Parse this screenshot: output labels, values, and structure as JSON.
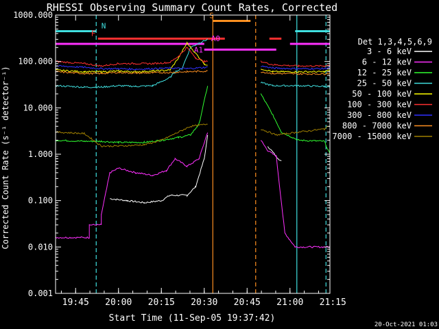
{
  "chart_data": {
    "type": "line",
    "title": "RHESSI Observing Summary Count Rates, Corrected",
    "xlabel": "Start Time (11-Sep-05 19:37:42)",
    "ylabel": "Corrected Count Rate (s⁻¹ detector⁻¹)",
    "footer": "20-Oct-2021 01:03",
    "yscale": "log",
    "ylim": [
      0.001,
      1000
    ],
    "xlim": [
      19.633,
      21.233
    ],
    "y_ticks": [
      {
        "v": 1000,
        "label": "1000.000"
      },
      {
        "v": 100,
        "label": "100.000"
      },
      {
        "v": 10,
        "label": "10.000"
      },
      {
        "v": 1,
        "label": "1.000"
      },
      {
        "v": 0.1,
        "label": "0.100"
      },
      {
        "v": 0.01,
        "label": "0.010"
      },
      {
        "v": 0.001,
        "label": "0.001"
      }
    ],
    "x_ticks": [
      {
        "v": 19.75,
        "label": "19:45"
      },
      {
        "v": 20.0,
        "label": "20:00"
      },
      {
        "v": 20.25,
        "label": "20:15"
      },
      {
        "v": 20.5,
        "label": "20:30"
      },
      {
        "v": 20.75,
        "label": "20:45"
      },
      {
        "v": 21.0,
        "label": "21:00"
      },
      {
        "v": 21.25,
        "label": "21:15"
      }
    ],
    "legend_title": "Det 1,3,4,5,6,9",
    "series": [
      {
        "name": "3 - 6 keV",
        "color": "#ffffff",
        "points": [
          [
            19.95,
            0.11
          ],
          [
            20.05,
            0.1
          ],
          [
            20.15,
            0.09
          ],
          [
            20.25,
            0.1
          ],
          [
            20.3,
            0.13
          ],
          [
            20.4,
            0.13
          ],
          [
            20.45,
            0.2
          ],
          [
            20.5,
            0.8
          ],
          [
            20.52,
            2.5
          ],
          null,
          [
            20.87,
            1.5
          ],
          [
            20.92,
            0.9
          ],
          [
            20.95,
            0.7
          ]
        ]
      },
      {
        "name": "6 - 12 keV",
        "color": "#ff30ff",
        "points": [
          [
            19.633,
            0.016
          ],
          [
            19.83,
            0.016
          ],
          [
            19.83,
            0.03
          ],
          [
            19.9,
            0.03
          ],
          [
            19.9,
            0.05
          ],
          [
            19.95,
            0.4
          ],
          [
            20.0,
            0.5
          ],
          [
            20.1,
            0.4
          ],
          [
            20.2,
            0.35
          ],
          [
            20.28,
            0.45
          ],
          [
            20.33,
            0.8
          ],
          [
            20.4,
            0.55
          ],
          [
            20.47,
            0.8
          ],
          [
            20.52,
            3
          ],
          null,
          [
            20.83,
            2
          ],
          [
            20.87,
            1.2
          ],
          [
            20.92,
            0.9
          ],
          [
            20.97,
            0.02
          ],
          [
            21.03,
            0.01
          ],
          [
            21.233,
            0.01
          ]
        ]
      },
      {
        "name": "12 - 25 keV",
        "color": "#30ff30",
        "points": [
          [
            19.633,
            2.0
          ],
          [
            19.8,
            1.9
          ],
          [
            19.9,
            1.9
          ],
          [
            20.0,
            1.8
          ],
          [
            20.15,
            1.8
          ],
          [
            20.25,
            2.0
          ],
          [
            20.35,
            2.3
          ],
          [
            20.42,
            2.6
          ],
          [
            20.47,
            4.5
          ],
          [
            20.52,
            30
          ],
          null,
          [
            20.83,
            20
          ],
          [
            20.9,
            7
          ],
          [
            20.95,
            3
          ],
          [
            21.05,
            2
          ],
          [
            21.2,
            1.9
          ],
          [
            21.233,
            1.0
          ]
        ]
      },
      {
        "name": "25 - 50 keV",
        "color": "#40e0e0",
        "points": [
          [
            19.633,
            30
          ],
          [
            19.8,
            28
          ],
          [
            19.9,
            28
          ],
          [
            20.0,
            30
          ],
          [
            20.1,
            29
          ],
          [
            20.2,
            30
          ],
          [
            20.3,
            45
          ],
          [
            20.33,
            60
          ],
          [
            20.37,
            70
          ],
          [
            20.42,
            200
          ],
          [
            20.47,
            250
          ],
          [
            20.52,
            300
          ],
          null,
          [
            20.83,
            35
          ],
          [
            20.9,
            30
          ],
          [
            21.05,
            30
          ],
          [
            21.2,
            29
          ],
          [
            21.233,
            28
          ]
        ]
      },
      {
        "name": "50 - 100 keV",
        "color": "#ffff00",
        "points": [
          [
            19.633,
            65
          ],
          [
            19.8,
            60
          ],
          [
            19.9,
            60
          ],
          [
            20.0,
            62
          ],
          [
            20.1,
            60
          ],
          [
            20.2,
            62
          ],
          [
            20.3,
            65
          ],
          [
            20.35,
            120
          ],
          [
            20.4,
            250
          ],
          [
            20.45,
            150
          ],
          [
            20.5,
            90
          ],
          [
            20.52,
            80
          ],
          null,
          [
            20.83,
            70
          ],
          [
            20.9,
            60
          ],
          [
            21.05,
            60
          ],
          [
            21.2,
            60
          ],
          [
            21.233,
            65
          ]
        ]
      },
      {
        "name": "100 - 300 keV",
        "color": "#ff3030",
        "points": [
          [
            19.633,
            100
          ],
          [
            19.8,
            90
          ],
          [
            19.9,
            80
          ],
          [
            20.0,
            90
          ],
          [
            20.1,
            90
          ],
          [
            20.2,
            90
          ],
          [
            20.3,
            95
          ],
          [
            20.35,
            130
          ],
          [
            20.4,
            200
          ],
          [
            20.45,
            120
          ],
          [
            20.5,
            100
          ],
          [
            20.52,
            100
          ],
          null,
          [
            20.83,
            100
          ],
          [
            20.9,
            85
          ],
          [
            21.05,
            80
          ],
          [
            21.2,
            80
          ],
          [
            21.233,
            85
          ]
        ]
      },
      {
        "name": "300 - 800 keV",
        "color": "#3030ff",
        "points": [
          [
            19.633,
            80
          ],
          [
            19.8,
            75
          ],
          [
            19.9,
            70
          ],
          [
            20.0,
            70
          ],
          [
            20.1,
            68
          ],
          [
            20.2,
            70
          ],
          [
            20.3,
            72
          ],
          [
            20.4,
            70
          ],
          [
            20.52,
            75
          ],
          null,
          [
            20.83,
            80
          ],
          [
            20.9,
            72
          ],
          [
            21.05,
            70
          ],
          [
            21.2,
            70
          ],
          [
            21.233,
            75
          ]
        ]
      },
      {
        "name": "800 - 7000 keV",
        "color": "#ff9020",
        "points": [
          [
            19.633,
            60
          ],
          [
            19.8,
            55
          ],
          [
            19.9,
            55
          ],
          [
            20.0,
            58
          ],
          [
            20.1,
            56
          ],
          [
            20.2,
            57
          ],
          [
            20.3,
            58
          ],
          [
            20.4,
            60
          ],
          [
            20.52,
            62
          ],
          null,
          [
            20.83,
            60
          ],
          [
            20.9,
            55
          ],
          [
            21.05,
            54
          ],
          [
            21.2,
            54
          ],
          [
            21.233,
            56
          ]
        ]
      },
      {
        "name": "7000 - 15000 keV",
        "color": "#a08000",
        "points": [
          [
            19.633,
            3.0
          ],
          [
            19.8,
            2.8
          ],
          [
            19.9,
            1.5
          ],
          [
            20.0,
            1.5
          ],
          [
            20.15,
            1.6
          ],
          [
            20.25,
            2.0
          ],
          [
            20.35,
            3.0
          ],
          [
            20.42,
            4.0
          ],
          [
            20.47,
            4.2
          ],
          [
            20.52,
            4.5
          ],
          null,
          [
            20.83,
            3.5
          ],
          [
            20.92,
            2.6
          ],
          [
            21.05,
            3.0
          ],
          [
            21.2,
            3.5
          ],
          [
            21.233,
            4.2
          ]
        ]
      }
    ],
    "markers": [
      {
        "label": "N",
        "color": "#40e0e0",
        "y": 450,
        "segments": [
          [
            19.633,
            19.87
          ],
          [
            21.03,
            21.233
          ]
        ]
      },
      {
        "label": "F",
        "color": "#ff3030",
        "y": 310,
        "segments": [
          [
            19.88,
            20.62
          ],
          [
            20.88,
            20.95
          ]
        ]
      },
      {
        "label": "S",
        "color": "#ff9020",
        "y": 750,
        "segments": [
          [
            20.55,
            20.77
          ]
        ]
      },
      {
        "label": "A0",
        "color": "#ff30ff",
        "y": 240,
        "segments": [
          [
            19.633,
            20.5
          ],
          [
            21.0,
            21.233
          ]
        ]
      },
      {
        "label": "A1",
        "color": "#ff30ff",
        "y": 180,
        "segments": [
          [
            20.5,
            20.92
          ]
        ]
      }
    ],
    "vlines": [
      {
        "x": 19.87,
        "color": "#40e0e0",
        "dashed": true
      },
      {
        "x": 20.55,
        "color": "#ff9020",
        "dashed": false
      },
      {
        "x": 20.8,
        "color": "#ff9020",
        "dashed": true
      },
      {
        "x": 21.04,
        "color": "#40e0e0",
        "dashed": false
      },
      {
        "x": 21.21,
        "color": "#40e0e0",
        "dashed": true
      }
    ]
  }
}
